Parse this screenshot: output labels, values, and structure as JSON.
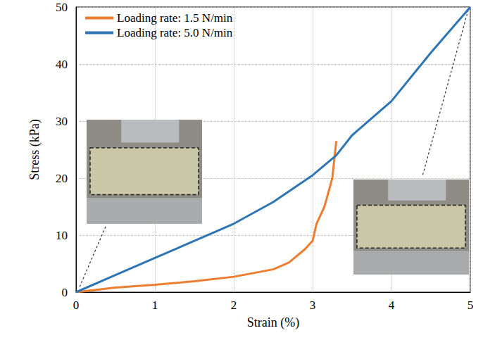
{
  "chart_data": {
    "type": "line",
    "x_label": "Strain (%)",
    "y_label": "Stress (kPa)",
    "xlim": [
      0,
      5
    ],
    "xticks": [
      0,
      1,
      2,
      3,
      4,
      5
    ],
    "ylim": [
      0,
      50
    ],
    "yticks": [
      0,
      10,
      20,
      30,
      40,
      50
    ],
    "grid": true,
    "legend": "upper left",
    "series": [
      {
        "name": "Loading rate: 1.5 N/min",
        "color": "#ED7D31",
        "x": [
          0,
          0.5,
          1,
          1.5,
          2,
          2.5,
          2.7,
          2.9,
          3.0,
          3.05,
          3.15,
          3.25,
          3.3
        ],
        "values": [
          0,
          0.8,
          1.3,
          1.9,
          2.7,
          4.0,
          5.2,
          7.5,
          9.0,
          12.0,
          15.0,
          20.0,
          26.5
        ]
      },
      {
        "name": "Loading rate: 5.0 N/min",
        "color": "#2E75B6",
        "x": [
          0,
          0.5,
          1,
          1.5,
          2,
          2.5,
          3,
          3.3,
          3.5,
          4,
          4.5,
          5
        ],
        "values": [
          0,
          3.0,
          6.0,
          9.0,
          12.0,
          15.8,
          20.5,
          24.0,
          27.5,
          33.5,
          42.0,
          50.0
        ]
      }
    ]
  }
}
